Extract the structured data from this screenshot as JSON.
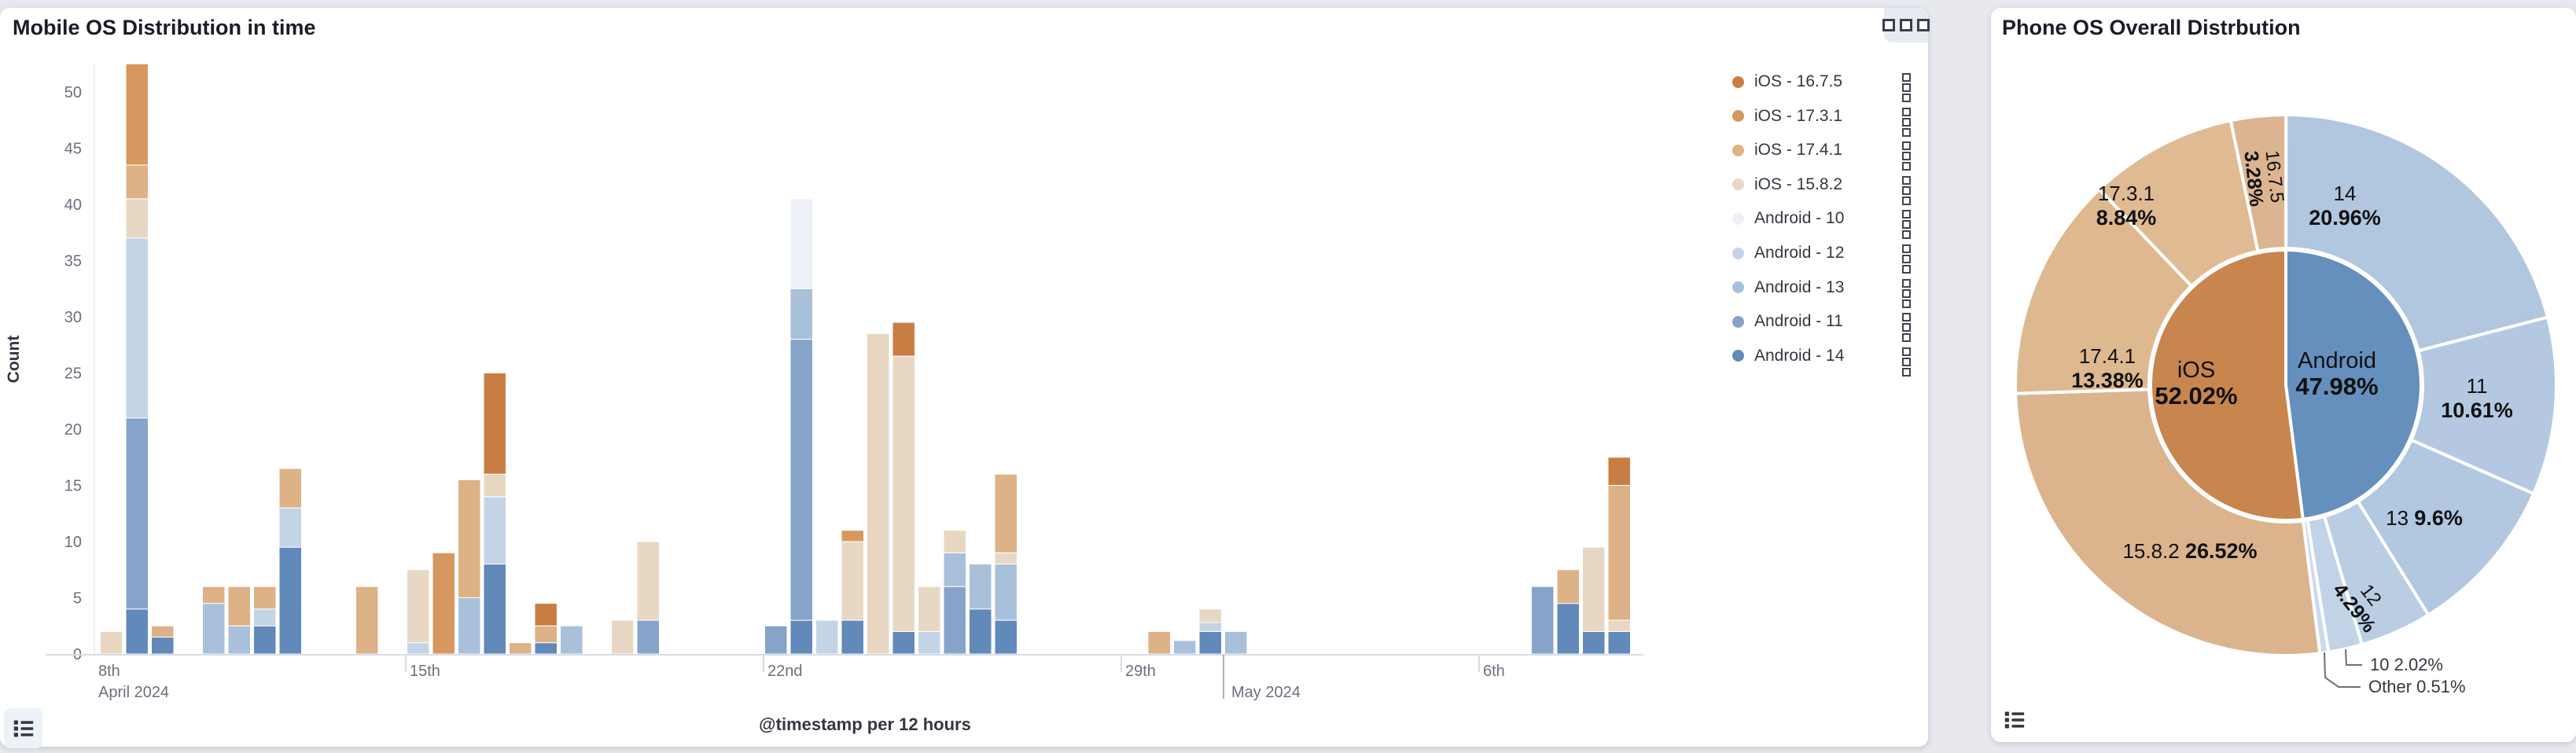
{
  "panels": {
    "left": {
      "title": "Mobile OS Distribution in time"
    },
    "right": {
      "title": "Phone OS Overall Distrbution"
    }
  },
  "icons": {
    "panel_menu": "boxes-horizontal-icon",
    "legend_item_menu": "boxes-vertical-icon",
    "legend_toggle": "list-icon"
  },
  "chart_data": [
    {
      "type": "bar",
      "title": "Mobile OS Distribution in time",
      "xlabel": "@timestamp per 12 hours",
      "ylabel": "Count",
      "ylim": [
        0,
        55
      ],
      "y_ticks": [
        0,
        5,
        10,
        15,
        20,
        25,
        30,
        35,
        40,
        45,
        50
      ],
      "x_ticks": [
        {
          "x": 120,
          "label": "8th",
          "tick": false
        },
        {
          "x": 516,
          "label": "15th",
          "tick": true
        },
        {
          "x": 971,
          "label": "22nd",
          "tick": true
        },
        {
          "x": 1426,
          "label": "29th",
          "tick": true
        },
        {
          "x": 1881,
          "label": "6th",
          "tick": true
        }
      ],
      "month_labels": [
        {
          "x": 120,
          "label": "April 2024"
        },
        {
          "x": 1561,
          "label": "May 2024"
        }
      ],
      "month_boundary_x": 1556,
      "legend_position": "right",
      "grid": false,
      "series": [
        {
          "id": "ios1675",
          "label": "iOS - 16.7.5",
          "color": "#c87e43"
        },
        {
          "id": "ios1731",
          "label": "iOS - 17.3.1",
          "color": "#d6985f"
        },
        {
          "id": "ios1741",
          "label": "iOS - 17.4.1",
          "color": "#deb287"
        },
        {
          "id": "ios1582",
          "label": "iOS - 15.8.2",
          "color": "#e8d7c3"
        },
        {
          "id": "a10",
          "label": "Android - 10",
          "color": "#edf0f6"
        },
        {
          "id": "a12",
          "label": "Android - 12",
          "color": "#c4d4e7"
        },
        {
          "id": "a13",
          "label": "Android - 13",
          "color": "#a9c0db"
        },
        {
          "id": "a11",
          "label": "Android - 11",
          "color": "#86a4ca"
        },
        {
          "id": "a14",
          "label": "Android - 14",
          "color": "#6189ba"
        }
      ],
      "bars": [
        {
          "i": 2,
          "t": "Apr 9 00:00",
          "stack": [
            [
              "ios1582",
              2
            ]
          ]
        },
        {
          "i": 3,
          "t": "Apr 9 12:00",
          "stack": [
            [
              "a14",
              4
            ],
            [
              "a11",
              17
            ],
            [
              "a12",
              16
            ],
            [
              "ios1582",
              3.5
            ],
            [
              "ios1741",
              3
            ],
            [
              "ios1731",
              9
            ]
          ]
        },
        {
          "i": 4,
          "t": "Apr 10 00:00",
          "stack": [
            [
              "a14",
              1.5
            ],
            [
              "ios1741",
              1
            ]
          ]
        },
        {
          "i": 6,
          "t": "Apr 11 00:00",
          "stack": [
            [
              "a13",
              4.5
            ],
            [
              "ios1741",
              1.5
            ]
          ]
        },
        {
          "i": 7,
          "t": "Apr 11 12:00",
          "stack": [
            [
              "a13",
              2.5
            ],
            [
              "ios1741",
              3.5
            ]
          ]
        },
        {
          "i": 8,
          "t": "Apr 12 00:00",
          "stack": [
            [
              "a14",
              2.5
            ],
            [
              "a12",
              1.5
            ],
            [
              "ios1741",
              2
            ]
          ]
        },
        {
          "i": 9,
          "t": "Apr 12 12:00",
          "stack": [
            [
              "a14",
              9.5
            ],
            [
              "a12",
              3.5
            ],
            [
              "ios1741",
              3.5
            ]
          ]
        },
        {
          "i": 12,
          "t": "Apr 14 00:00",
          "stack": [
            [
              "ios1741",
              6
            ]
          ]
        },
        {
          "i": 14,
          "t": "Apr 15 00:00",
          "stack": [
            [
              "a12",
              1
            ],
            [
              "ios1582",
              6.5
            ]
          ]
        },
        {
          "i": 15,
          "t": "Apr 15 12:00",
          "stack": [
            [
              "ios1731",
              9
            ]
          ]
        },
        {
          "i": 16,
          "t": "Apr 16 00:00",
          "stack": [
            [
              "a13",
              5
            ],
            [
              "ios1741",
              10.5
            ]
          ]
        },
        {
          "i": 17,
          "t": "Apr 16 12:00",
          "stack": [
            [
              "a14",
              8
            ],
            [
              "a12",
              6
            ],
            [
              "ios1582",
              2
            ],
            [
              "ios1675",
              9
            ]
          ]
        },
        {
          "i": 18,
          "t": "Apr 17 00:00",
          "stack": [
            [
              "ios1741",
              1
            ]
          ]
        },
        {
          "i": 19,
          "t": "Apr 17 12:00",
          "stack": [
            [
              "a14",
              1
            ],
            [
              "ios1741",
              1.5
            ],
            [
              "ios1675",
              2
            ]
          ]
        },
        {
          "i": 20,
          "t": "Apr 18 00:00",
          "stack": [
            [
              "a13",
              2.5
            ]
          ]
        },
        {
          "i": 22,
          "t": "Apr 19 00:00",
          "stack": [
            [
              "ios1582",
              3
            ]
          ]
        },
        {
          "i": 23,
          "t": "Apr 19 12:00",
          "stack": [
            [
              "a11",
              3
            ],
            [
              "ios1582",
              7
            ]
          ]
        },
        {
          "i": 28,
          "t": "Apr 22 00:00",
          "stack": [
            [
              "a11",
              2.5
            ]
          ]
        },
        {
          "i": 29,
          "t": "Apr 22 12:00",
          "stack": [
            [
              "a14",
              3
            ],
            [
              "a11",
              25
            ],
            [
              "a13",
              4.5
            ],
            [
              "a10",
              8
            ]
          ]
        },
        {
          "i": 30,
          "t": "Apr 23 00:00",
          "stack": [
            [
              "a12",
              3
            ]
          ]
        },
        {
          "i": 31,
          "t": "Apr 23 12:00",
          "stack": [
            [
              "a14",
              3
            ],
            [
              "ios1582",
              7
            ],
            [
              "ios1731",
              1
            ]
          ]
        },
        {
          "i": 32,
          "t": "Apr 24 00:00",
          "stack": [
            [
              "ios1582",
              28.5
            ]
          ]
        },
        {
          "i": 33,
          "t": "Apr 24 12:00",
          "stack": [
            [
              "a14",
              2
            ],
            [
              "ios1582",
              24.5
            ],
            [
              "ios1675",
              3
            ]
          ]
        },
        {
          "i": 34,
          "t": "Apr 25 00:00",
          "stack": [
            [
              "a12",
              2
            ],
            [
              "ios1582",
              4
            ]
          ]
        },
        {
          "i": 35,
          "t": "Apr 25 12:00",
          "stack": [
            [
              "a11",
              6
            ],
            [
              "a13",
              3
            ],
            [
              "ios1582",
              2
            ]
          ]
        },
        {
          "i": 36,
          "t": "Apr 26 00:00",
          "stack": [
            [
              "a14",
              4
            ],
            [
              "a13",
              4
            ]
          ]
        },
        {
          "i": 37,
          "t": "Apr 26 12:00",
          "stack": [
            [
              "a14",
              3
            ],
            [
              "a13",
              5
            ],
            [
              "ios1582",
              1
            ],
            [
              "ios1741",
              7
            ]
          ]
        },
        {
          "i": 43,
          "t": "Apr 29 12:00",
          "stack": [
            [
              "ios1741",
              2
            ]
          ]
        },
        {
          "i": 44,
          "t": "Apr 30 00:00",
          "stack": [
            [
              "a13",
              1.2
            ]
          ]
        },
        {
          "i": 45,
          "t": "Apr 30 12:00",
          "stack": [
            [
              "a14",
              2
            ],
            [
              "a12",
              0.8
            ],
            [
              "ios1582",
              1.2
            ]
          ]
        },
        {
          "i": 46,
          "t": "May 1 00:00",
          "stack": [
            [
              "a13",
              2
            ]
          ]
        },
        {
          "i": 58,
          "t": "May 7 00:00",
          "stack": [
            [
              "a11",
              6
            ]
          ]
        },
        {
          "i": 59,
          "t": "May 7 12:00",
          "stack": [
            [
              "a14",
              4.5
            ],
            [
              "ios1741",
              3
            ]
          ]
        },
        {
          "i": 60,
          "t": "May 8 00:00",
          "stack": [
            [
              "a14",
              2
            ],
            [
              "ios1582",
              7.5
            ]
          ]
        },
        {
          "i": 61,
          "t": "May 8 12:00",
          "stack": [
            [
              "a14",
              2
            ],
            [
              "ios1582",
              1
            ],
            [
              "ios1741",
              12
            ],
            [
              "ios1675",
              2.5
            ]
          ]
        }
      ]
    },
    {
      "type": "pie",
      "title": "Phone OS Overall Distrbution",
      "style": "sunburst",
      "center": {
        "x": 375,
        "y": 480
      },
      "r_inner": 172,
      "r_outer": 344,
      "inner": [
        {
          "name": "Android",
          "pct": 47.98,
          "value_label": "47.98%",
          "color": "#6590bd",
          "label": {
            "mode": "stack-big",
            "x": 440,
            "y": 458
          }
        },
        {
          "name": "iOS",
          "pct": 52.02,
          "value_label": "52.02%",
          "color": "#c8854d",
          "label": {
            "mode": "stack-big",
            "x": 261,
            "y": 470
          }
        }
      ],
      "outer": [
        {
          "name": "14",
          "pct": 20.96,
          "value_label": "20.96%",
          "color": "#b1c6df",
          "label": {
            "mode": "stack",
            "x": 450,
            "y": 245
          }
        },
        {
          "name": "11",
          "pct": 10.61,
          "value_label": "10.61%",
          "color": "#b4c9e1",
          "label": {
            "mode": "stack",
            "x": 618,
            "y": 490
          }
        },
        {
          "name": "13",
          "pct": 9.6,
          "value_label": "9.6%",
          "color": "#b2c7e0",
          "label": {
            "mode": "inline",
            "x": 551,
            "y": 658
          }
        },
        {
          "name": "12",
          "pct": 4.29,
          "value_label": "4.29%",
          "color": "#b9cde3",
          "label": {
            "mode": "stack-rot",
            "x": 473,
            "y": 755,
            "rot": 52
          }
        },
        {
          "name": "10",
          "pct": 2.02,
          "value_label": "2.02%",
          "color": "#c1d3e7",
          "label": {
            "mode": "callout",
            "line": [
              [
                451,
                816
              ],
              [
                452,
                836
              ],
              [
                472,
                836
              ]
            ],
            "tx": 482,
            "ty": 843
          }
        },
        {
          "name": "Other",
          "pct": 0.51,
          "value_label": "0.51%",
          "color": "#ccd9eb",
          "label": {
            "mode": "callout",
            "line": [
              [
                424,
                820
              ],
              [
                425,
                852
              ],
              [
                442,
                864
              ],
              [
                470,
                864
              ]
            ],
            "tx": 480,
            "ty": 871
          }
        },
        {
          "name": "15.8.2",
          "pct": 26.52,
          "value_label": "26.52%",
          "color": "#dbb48d",
          "label": {
            "mode": "inline",
            "x": 253,
            "y": 700
          }
        },
        {
          "name": "17.4.1",
          "pct": 13.38,
          "value_label": "13.38%",
          "color": "#deb88f",
          "label": {
            "mode": "stack",
            "x": 148,
            "y": 452
          }
        },
        {
          "name": "17.3.1",
          "pct": 8.84,
          "value_label": "8.84%",
          "color": "#e0ba93",
          "label": {
            "mode": "stack",
            "x": 172,
            "y": 245
          }
        },
        {
          "name": "16.7.5",
          "pct": 3.28,
          "value_label": "3.28%",
          "color": "#dcb490",
          "label": {
            "mode": "stack-rot",
            "x": 348,
            "y": 216,
            "rot": 84
          }
        }
      ]
    }
  ]
}
